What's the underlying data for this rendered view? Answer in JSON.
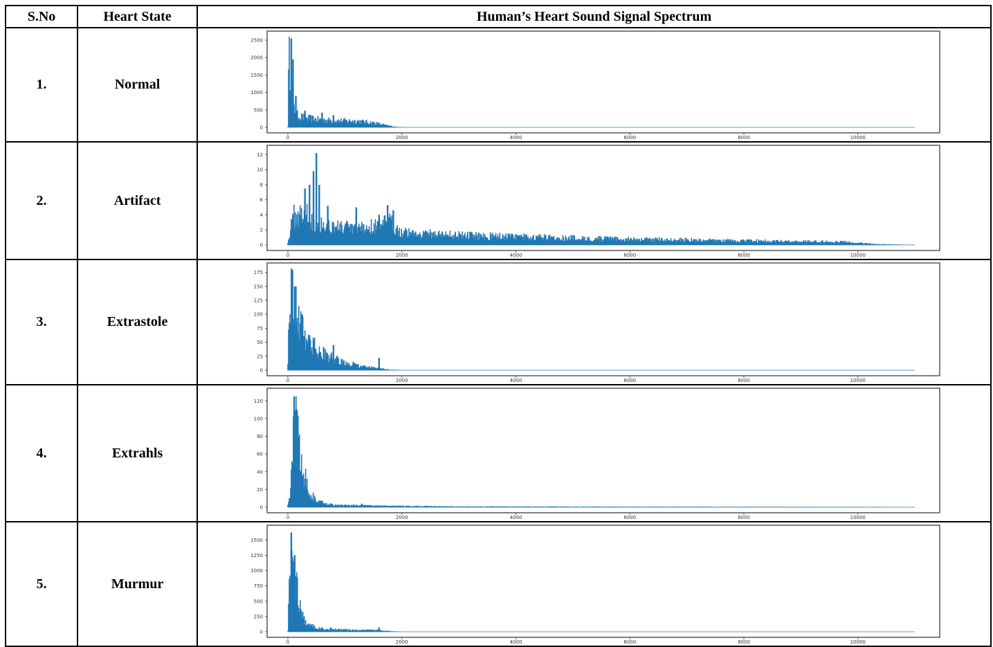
{
  "table": {
    "headers": [
      "S.No",
      "Heart State",
      "Human’s Heart Sound Signal Spectrum"
    ],
    "rows": [
      {
        "no": "1.",
        "state": "Normal"
      },
      {
        "no": "2.",
        "state": "Artifact"
      },
      {
        "no": "3.",
        "state": "Extrastole"
      },
      {
        "no": "4.",
        "state": "Extrahls"
      },
      {
        "no": "5.",
        "state": "Murmur"
      }
    ]
  },
  "colors": {
    "series": "#1f77b4",
    "baseline": "#8ec1e0"
  },
  "chart_data": [
    {
      "type": "area",
      "xticks": [
        "0",
        "2000",
        "4000",
        "6000",
        "8000",
        "10000"
      ],
      "yticks": [
        "0",
        "500",
        "1000",
        "1500",
        "2000",
        "2500"
      ],
      "xlim": [
        0,
        11000
      ],
      "ylim": [
        0,
        2600
      ],
      "profile": [
        [
          0,
          40
        ],
        [
          20,
          2550
        ],
        [
          50,
          1950
        ],
        [
          90,
          700
        ],
        [
          160,
          420
        ],
        [
          300,
          320
        ],
        [
          600,
          260
        ],
        [
          900,
          230
        ],
        [
          1200,
          220
        ],
        [
          1500,
          160
        ],
        [
          1700,
          80
        ],
        [
          1900,
          15
        ],
        [
          2050,
          0
        ],
        [
          11000,
          0
        ]
      ],
      "spikes": [
        [
          60,
          2550
        ],
        [
          90,
          1950
        ],
        [
          140,
          900
        ],
        [
          300,
          480
        ],
        [
          600,
          420
        ],
        [
          800,
          350
        ]
      ]
    },
    {
      "type": "area",
      "xticks": [
        "0",
        "2000",
        "4000",
        "6000",
        "8000",
        "10000"
      ],
      "yticks": [
        "0",
        "2",
        "4",
        "6",
        "8",
        "10",
        "12"
      ],
      "xlim": [
        0,
        11000
      ],
      "ylim": [
        0,
        12.5
      ],
      "profile": [
        [
          0,
          0.5
        ],
        [
          100,
          4.5
        ],
        [
          300,
          5
        ],
        [
          500,
          3.5
        ],
        [
          800,
          3
        ],
        [
          1200,
          2.5
        ],
        [
          1800,
          3.5
        ],
        [
          2000,
          2
        ],
        [
          3000,
          1.6
        ],
        [
          4000,
          1.3
        ],
        [
          5000,
          1.1
        ],
        [
          6000,
          0.9
        ],
        [
          7000,
          0.8
        ],
        [
          8000,
          0.65
        ],
        [
          9000,
          0.55
        ],
        [
          9800,
          0.45
        ],
        [
          10300,
          0.15
        ],
        [
          10900,
          0
        ]
      ],
      "spikes": [
        [
          500,
          12.2
        ],
        [
          450,
          9.8
        ],
        [
          380,
          8
        ],
        [
          550,
          8
        ],
        [
          300,
          7.5
        ],
        [
          1200,
          5
        ],
        [
          1750,
          5.3
        ],
        [
          1850,
          4.6
        ],
        [
          700,
          5.2
        ],
        [
          1600,
          4
        ]
      ]
    },
    {
      "type": "area",
      "xticks": [
        "0",
        "2000",
        "4000",
        "6000",
        "8000",
        "10000"
      ],
      "yticks": [
        "0",
        "25",
        "50",
        "75",
        "100",
        "125",
        "150",
        "175"
      ],
      "xlim": [
        0,
        11000
      ],
      "ylim": [
        0,
        182
      ],
      "profile": [
        [
          0,
          20
        ],
        [
          40,
          175
        ],
        [
          100,
          140
        ],
        [
          200,
          110
        ],
        [
          400,
          55
        ],
        [
          700,
          30
        ],
        [
          1000,
          15
        ],
        [
          1300,
          8
        ],
        [
          1600,
          4
        ],
        [
          1800,
          1
        ],
        [
          2000,
          0
        ],
        [
          11000,
          0
        ]
      ],
      "spikes": [
        [
          80,
          180
        ],
        [
          120,
          150
        ],
        [
          250,
          100
        ],
        [
          800,
          45
        ],
        [
          1150,
          15
        ],
        [
          1600,
          22
        ]
      ]
    },
    {
      "type": "area",
      "xticks": [
        "0",
        "2000",
        "4000",
        "6000",
        "8000",
        "10000"
      ],
      "yticks": [
        "0",
        "20",
        "40",
        "60",
        "80",
        "100",
        "120"
      ],
      "xlim": [
        0,
        11000
      ],
      "ylim": [
        0,
        128
      ],
      "profile": [
        [
          0,
          5
        ],
        [
          40,
          15
        ],
        [
          80,
          65
        ],
        [
          120,
          125
        ],
        [
          180,
          105
        ],
        [
          260,
          60
        ],
        [
          350,
          25
        ],
        [
          500,
          8
        ],
        [
          800,
          3
        ],
        [
          1500,
          2
        ],
        [
          3000,
          1
        ],
        [
          6000,
          0.6
        ],
        [
          9000,
          0.4
        ],
        [
          11000,
          0
        ]
      ],
      "spikes": [
        [
          110,
          125
        ],
        [
          160,
          110
        ],
        [
          1300,
          4
        ]
      ]
    },
    {
      "type": "area",
      "xticks": [
        "0",
        "2000",
        "4000",
        "6000",
        "8000",
        "10000"
      ],
      "yticks": [
        "0",
        "250",
        "500",
        "750",
        "1000",
        "1250",
        "1500"
      ],
      "xlim": [
        0,
        11000
      ],
      "ylim": [
        0,
        1650
      ],
      "profile": [
        [
          0,
          30
        ],
        [
          50,
          1620
        ],
        [
          100,
          1250
        ],
        [
          180,
          700
        ],
        [
          300,
          200
        ],
        [
          500,
          70
        ],
        [
          800,
          45
        ],
        [
          1200,
          40
        ],
        [
          1600,
          30
        ],
        [
          1800,
          10
        ],
        [
          2000,
          0
        ],
        [
          11000,
          0
        ]
      ],
      "spikes": [
        [
          60,
          1620
        ],
        [
          120,
          1250
        ],
        [
          750,
          70
        ],
        [
          1600,
          70
        ]
      ]
    }
  ]
}
